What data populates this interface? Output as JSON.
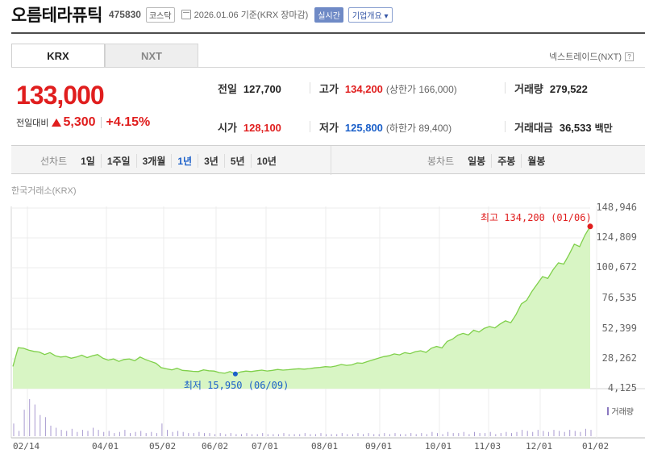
{
  "stock": {
    "name": "오름테라퓨틱",
    "code": "475830",
    "market": "코스닥",
    "as_of": "2026.01.06 기준(KRX 장마감)",
    "realtime": "실시간",
    "company_info": "기업개요 ▾"
  },
  "tabs": [
    {
      "label": "KRX"
    },
    {
      "label": "NXT"
    }
  ],
  "nxt_link": "넥스트레이드(NXT)",
  "help": "?",
  "price": "133,000",
  "change": {
    "label": "전일대비",
    "amount": "5,300",
    "rate": "+4.15%"
  },
  "stats": {
    "prev_close": {
      "label": "전일",
      "value": "127,700"
    },
    "high": {
      "label": "고가",
      "value": "134,200",
      "sub": "(상한가 166,000)"
    },
    "volume": {
      "label": "거래량",
      "value": "279,522"
    },
    "open": {
      "label": "시가",
      "value": "128,100"
    },
    "low": {
      "label": "저가",
      "value": "125,800",
      "sub": "(하한가 89,400)"
    },
    "amount": {
      "label": "거래대금",
      "value": "36,533",
      "unit": "백만"
    }
  },
  "period_bar": {
    "line_label": "선차트",
    "line_items": [
      "1일",
      "1주일",
      "3개월",
      "1년",
      "3년",
      "5년",
      "10년"
    ],
    "selected": "1년",
    "candle_label": "봉차트",
    "candle_items": [
      "일봉",
      "주봉",
      "월봉"
    ]
  },
  "chart_source": "한국거래소(KRX)",
  "chart_data": {
    "type": "area",
    "x_ticks": [
      "02/14",
      "04/01",
      "05/02",
      "06/02",
      "07/01",
      "08/01",
      "09/01",
      "10/01",
      "11/03",
      "12/01",
      "01/02"
    ],
    "y_ticks": [
      "148,946",
      "124,809",
      "100,672",
      "76,535",
      "52,399",
      "28,262",
      "4,125"
    ],
    "ylim": [
      4125,
      148946
    ],
    "high_annotation": "최고 134,200 (01/06)",
    "low_annotation": "최저 15,950 (06/09)",
    "volume_label": "거래량",
    "line_color": "#7fd04a",
    "fill_color": "#d8f5c4",
    "series": [
      {
        "values": [
          22000,
          37000,
          36500,
          35000,
          34000,
          33500,
          31500,
          33000,
          30500,
          29500,
          30000,
          28500,
          29500,
          31000,
          29000,
          30500,
          31500,
          28500,
          27000,
          28000,
          26000,
          27500,
          28000,
          26500,
          29500,
          27500,
          26000,
          24500,
          21000,
          20000,
          19200,
          20500,
          18800,
          18500,
          18000,
          17800,
          19200,
          18500,
          18200,
          17000,
          16500,
          17800,
          15950,
          17500,
          18200,
          17800,
          18500,
          19000,
          18300,
          18800,
          19500,
          19000,
          19300,
          19800,
          20100,
          19800,
          20200,
          20800,
          21200,
          21800,
          21500,
          22300,
          23500,
          22800,
          23200,
          24800,
          24500,
          26000,
          27200,
          28500,
          29800,
          30500,
          32000,
          31200,
          33000,
          32200,
          33800,
          34500,
          33200,
          36500,
          38000,
          36800,
          42000,
          43800,
          47000,
          48500,
          47200,
          51000,
          49500,
          52500,
          54000,
          52800,
          56000,
          58500,
          57000,
          63500,
          72000,
          75000,
          82000,
          88000,
          94000,
          92500,
          99500,
          105000,
          104000,
          111500,
          120000,
          118000,
          127000,
          134200
        ]
      }
    ],
    "volume_values": [
      12,
      5,
      25,
      35,
      30,
      20,
      18,
      10,
      8,
      6,
      5,
      7,
      4,
      6,
      5,
      8,
      6,
      4,
      5,
      3,
      4,
      6,
      3,
      4,
      5,
      3,
      4,
      3,
      12,
      6,
      4,
      5,
      4,
      3,
      3,
      4,
      3,
      3,
      2,
      3,
      2,
      3,
      2,
      2,
      3,
      2,
      2,
      3,
      2,
      2,
      2,
      3,
      2,
      2,
      2,
      3,
      2,
      2,
      3,
      2,
      2,
      2,
      3,
      2,
      2,
      3,
      2,
      3,
      2,
      2,
      3,
      2,
      3,
      2,
      2,
      3,
      2,
      3,
      2,
      4,
      3,
      2,
      4,
      3,
      3,
      4,
      2,
      4,
      3,
      3,
      4,
      2,
      3,
      4,
      3,
      4,
      6,
      5,
      4,
      6,
      5,
      4,
      6,
      5,
      4,
      6,
      5,
      4,
      7,
      6
    ]
  }
}
